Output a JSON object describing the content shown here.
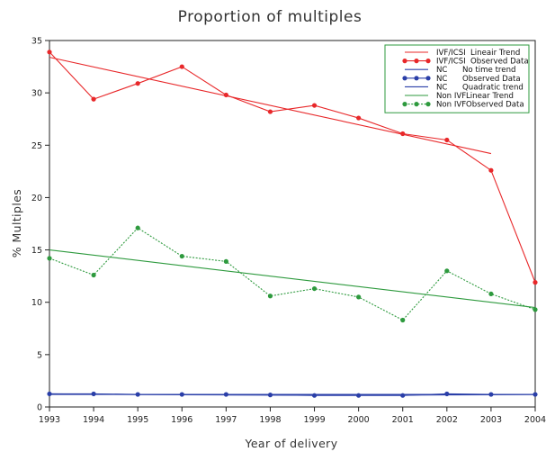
{
  "chart_data": {
    "type": "line",
    "title": "Proportion of multiples",
    "xlabel": "Year of delivery",
    "ylabel": "% Multiples",
    "x": [
      1993,
      1994,
      1995,
      1996,
      1997,
      1998,
      1999,
      2000,
      2001,
      2002,
      2003,
      2004
    ],
    "xlim": [
      1993,
      2004
    ],
    "ylim": [
      0,
      35
    ],
    "yticks": [
      0,
      5,
      10,
      15,
      20,
      25,
      30,
      35
    ],
    "grid": false,
    "legend_position": "top-right",
    "series": [
      {
        "name": "IVF/ICSI Lineair Trend",
        "kind": "trend",
        "color": "#e8282a",
        "dash": "solid",
        "points": [
          [
            1993,
            33.4
          ],
          [
            2003,
            24.2
          ]
        ]
      },
      {
        "name": "IVF/ICSI Observed Data",
        "kind": "observed",
        "color": "#e8282a",
        "dash": "solid",
        "marker": true,
        "values": [
          33.9,
          29.4,
          30.9,
          32.5,
          29.8,
          28.2,
          28.8,
          27.6,
          26.1,
          25.5,
          22.6,
          11.9
        ]
      },
      {
        "name": "NC No time trend",
        "kind": "trend",
        "color": "#2a3fa8",
        "dash": "solid",
        "points": [
          [
            1993,
            1.2
          ],
          [
            2004,
            1.2
          ]
        ]
      },
      {
        "name": "NC Observed Data",
        "kind": "observed",
        "color": "#2a3fa8",
        "dash": "solid",
        "marker": true,
        "values": [
          1.25,
          1.25,
          1.2,
          1.2,
          1.2,
          1.15,
          1.1,
          1.1,
          1.1,
          1.25,
          1.2,
          1.2
        ]
      },
      {
        "name": "NC Quadratic trend",
        "kind": "trend",
        "color": "#2a3fa8",
        "dash": "solid",
        "values": [
          1.25,
          1.22,
          1.19,
          1.17,
          1.15,
          1.13,
          1.12,
          1.12,
          1.13,
          1.15,
          1.17,
          1.2
        ]
      },
      {
        "name": "Non IVF Linear Trend",
        "kind": "trend",
        "color": "#2e9a3e",
        "dash": "solid",
        "points": [
          [
            1993,
            15.0
          ],
          [
            2004,
            9.5
          ]
        ]
      },
      {
        "name": "Non IVF Observed Data",
        "kind": "observed",
        "color": "#2e9a3e",
        "dash": "dotted",
        "marker": true,
        "values": [
          14.2,
          12.6,
          17.1,
          14.4,
          13.9,
          10.6,
          11.3,
          10.5,
          8.3,
          13.0,
          10.8,
          9.3
        ]
      }
    ],
    "legend": {
      "border_color": "#2e9a3e",
      "entries": [
        {
          "col1": "IVF/ICSI",
          "col2": "Lineair Trend"
        },
        {
          "col1": "IVF/ICSI",
          "col2": "Observed Data"
        },
        {
          "col1": "NC",
          "col2": "No time trend"
        },
        {
          "col1": "NC",
          "col2": "Observed Data"
        },
        {
          "col1": "NC",
          "col2": "Quadratic trend"
        },
        {
          "col1": "Non IVF",
          "col2": "Linear Trend"
        },
        {
          "col1": "Non IVF",
          "col2": "Observed Data"
        }
      ]
    }
  }
}
